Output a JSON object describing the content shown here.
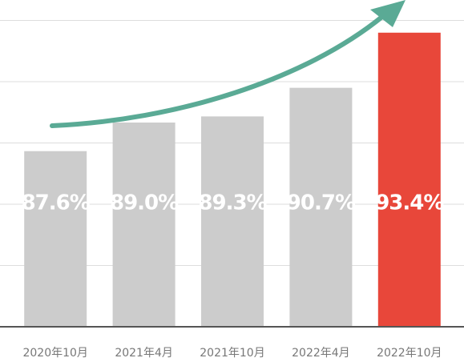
{
  "chart_data": {
    "type": "bar",
    "categories": [
      "2020年10月",
      "2021年4月",
      "2021年10月",
      "2022年4月",
      "2022年10月"
    ],
    "values": [
      87.6,
      89.0,
      89.3,
      90.7,
      93.4
    ],
    "value_labels": [
      "87.6%",
      "89.0%",
      "89.3%",
      "90.7%",
      "93.4%"
    ],
    "colors": [
      "#cccccc",
      "#cccccc",
      "#cccccc",
      "#cccccc",
      "#e8473a"
    ],
    "ylim": [
      79,
      95
    ],
    "yticks": [
      82,
      85,
      88,
      91,
      94
    ],
    "grid": true
  }
}
